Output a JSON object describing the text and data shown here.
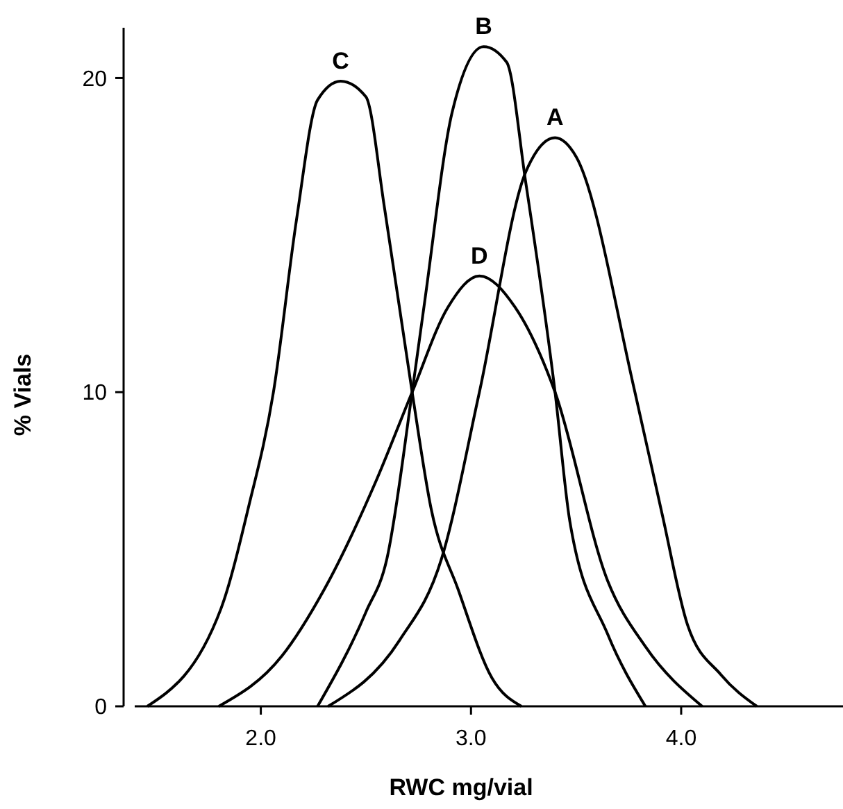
{
  "chart_data": {
    "type": "line",
    "xlabel": "RWC mg/vial",
    "ylabel": "% Vials",
    "xlim": [
      1.4,
      4.77
    ],
    "ylim": [
      0,
      21.6
    ],
    "xticks": [
      {
        "value": 2,
        "label": "2.0"
      },
      {
        "value": 3,
        "label": "3.0"
      },
      {
        "value": 4,
        "label": "4.0"
      }
    ],
    "yticks": [
      0,
      10,
      20
    ],
    "legend": false,
    "grid": false,
    "marker": "none",
    "line_style": "solid",
    "series": [
      {
        "name": "C",
        "color": "#000000",
        "x": [
          1.46,
          1.81,
          1.94,
          2.06,
          2.17,
          2.27,
          2.38,
          2.5,
          2.59,
          2.72,
          2.81,
          2.94,
          3.1,
          3.24
        ],
        "values": [
          0,
          3.1,
          6.3,
          10,
          15.5,
          19.3,
          19.9,
          19.4,
          15.8,
          10,
          6.3,
          3.7,
          0.9,
          0
        ]
      },
      {
        "name": "B",
        "color": "#000000",
        "x": [
          2.27,
          2.5,
          2.6,
          2.72,
          2.78,
          2.91,
          3.06,
          3.17,
          3.26,
          3.4,
          3.47,
          3.65,
          3.83
        ],
        "values": [
          0,
          3,
          4.7,
          10,
          12.9,
          18.9,
          21,
          20.5,
          16.7,
          10,
          5.9,
          2.3,
          0
        ]
      },
      {
        "name": "A",
        "color": "#000000",
        "x": [
          2.32,
          2.66,
          2.86,
          3.04,
          3.26,
          3.4,
          3.5,
          3.78,
          3.91,
          4.03,
          4.19,
          4.36
        ],
        "values": [
          0,
          2.1,
          4.7,
          10,
          17,
          18.1,
          17.5,
          10,
          6.1,
          2.6,
          1,
          0
        ]
      },
      {
        "name": "D",
        "color": "#000000",
        "x": [
          1.8,
          2.1,
          2.3,
          2.55,
          2.72,
          2.89,
          3.04,
          3.21,
          3.4,
          3.65,
          3.83,
          4.1
        ],
        "values": [
          0,
          1.6,
          3.7,
          7.2,
          10,
          12.7,
          13.7,
          12.7,
          10,
          4,
          1.9,
          0
        ]
      }
    ]
  }
}
